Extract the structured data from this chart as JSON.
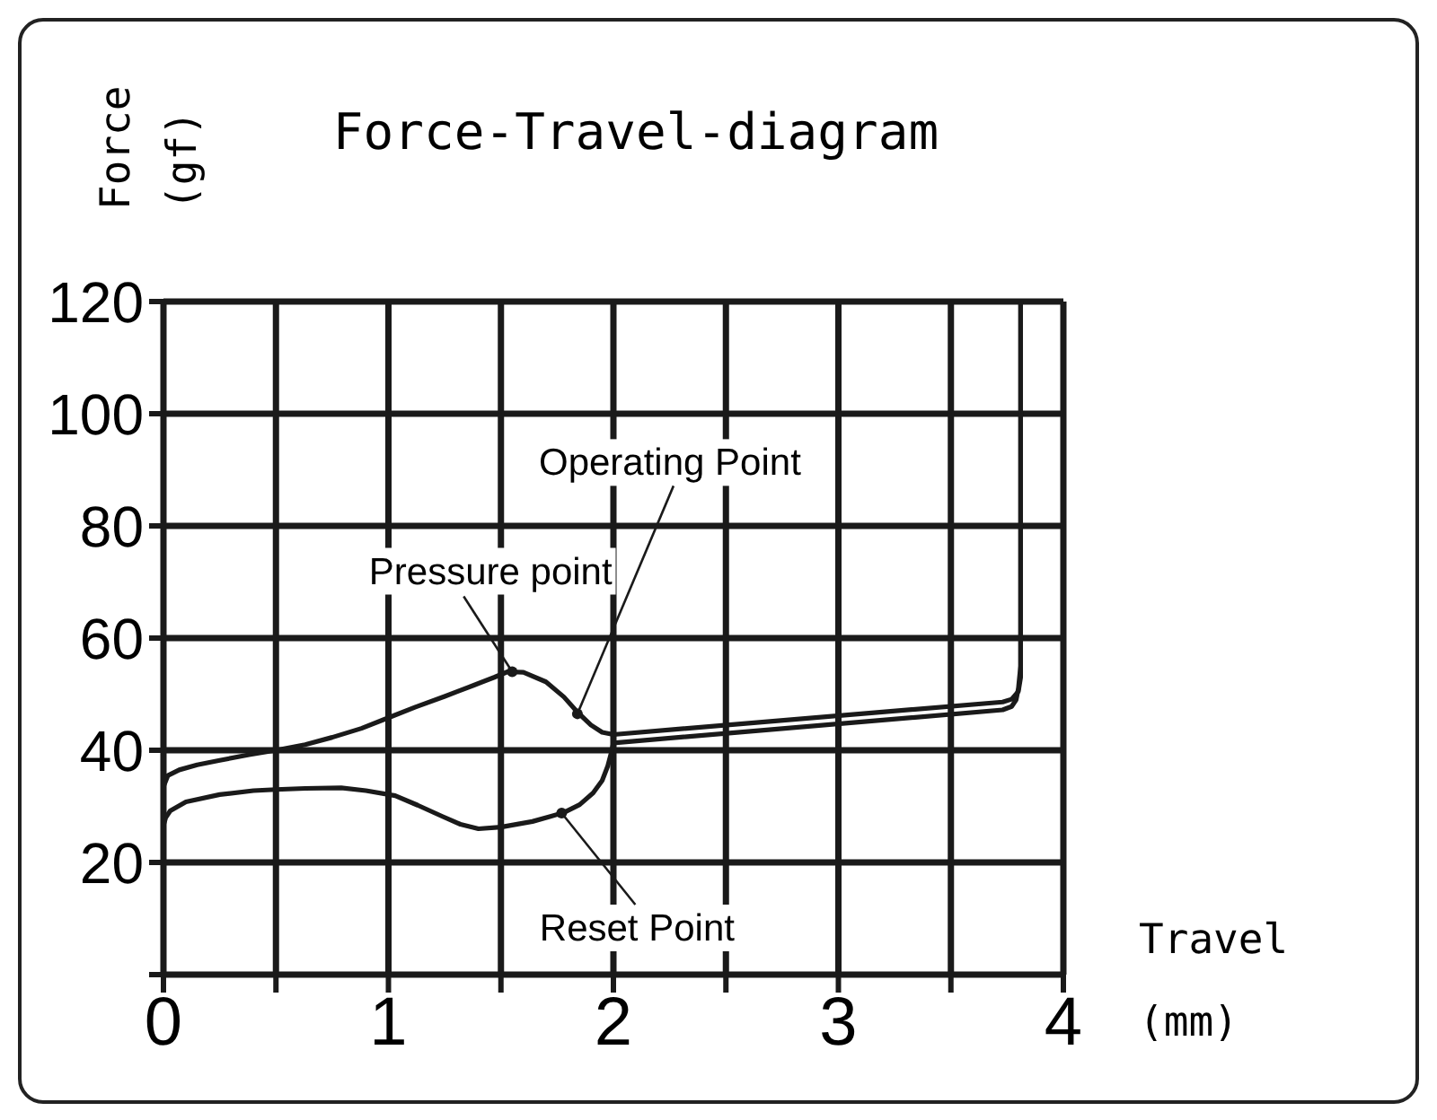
{
  "chart_data": {
    "type": "line",
    "title": "Force-Travel-diagram",
    "xlabel": "Travel (mm)",
    "ylabel": "Force (gf)",
    "xlim": [
      0,
      4
    ],
    "xticks": [
      0,
      {
        "value": 0.5,
        "label": null
      },
      1,
      {
        "value": 1.5,
        "label": null
      },
      2,
      {
        "value": 2.5,
        "label": null
      },
      3,
      {
        "value": 3.5,
        "label": null
      },
      4
    ],
    "ylim": [
      0,
      120
    ],
    "yticks": [
      {
        "value": 0,
        "label": null
      },
      20,
      40,
      60,
      80,
      100,
      120
    ],
    "grid": true,
    "marker": "none",
    "series": [
      {
        "color": "#1a1a1a",
        "x": [
          0,
          0.02,
          0.07,
          0.15,
          0.25,
          0.38,
          0.5,
          0.63,
          0.75,
          0.88,
          1.0,
          1.12,
          1.25,
          1.38,
          1.47,
          1.53,
          1.6,
          1.7,
          1.78,
          1.84,
          1.9,
          1.95,
          2.0,
          3.73,
          3.77,
          3.8,
          3.81,
          3.81
        ],
        "values": [
          33.5,
          35.5,
          36.5,
          37.4,
          38.2,
          39.2,
          40.0,
          41.0,
          42.3,
          43.9,
          45.8,
          47.7,
          49.6,
          51.6,
          53.0,
          54.0,
          53.9,
          52.2,
          49.5,
          46.8,
          44.5,
          43.2,
          42.8,
          48.6,
          49.1,
          50.5,
          53,
          120
        ]
      },
      {
        "color": "#1a1a1a",
        "x": [
          0,
          0.01,
          0.03,
          0.1,
          0.25,
          0.4,
          0.5,
          0.63,
          0.79,
          0.9,
          1.03,
          1.13,
          1.24,
          1.32,
          1.4,
          1.5,
          1.64,
          1.72,
          1.78,
          1.85,
          1.91,
          1.95,
          1.975,
          1.99,
          2.0,
          3.73,
          3.77,
          3.79,
          3.8,
          3.81,
          3.81
        ],
        "values": [
          26.6,
          28.0,
          29.2,
          30.8,
          32.1,
          32.8,
          33.0,
          33.2,
          33.3,
          32.8,
          31.9,
          30.2,
          28.2,
          26.8,
          26.0,
          26.3,
          27.3,
          28.2,
          28.9,
          30.3,
          32.4,
          34.6,
          37.2,
          39.5,
          41.3,
          47.2,
          47.8,
          49,
          51,
          55,
          120
        ]
      }
    ],
    "annotations": [
      {
        "text": "Operating Point",
        "x": 1.84,
        "y": 46.5
      },
      {
        "text": "Pressure point",
        "x": 1.55,
        "y": 54
      },
      {
        "text": "Reset Point",
        "x": 1.77,
        "y": 28.8
      }
    ]
  }
}
